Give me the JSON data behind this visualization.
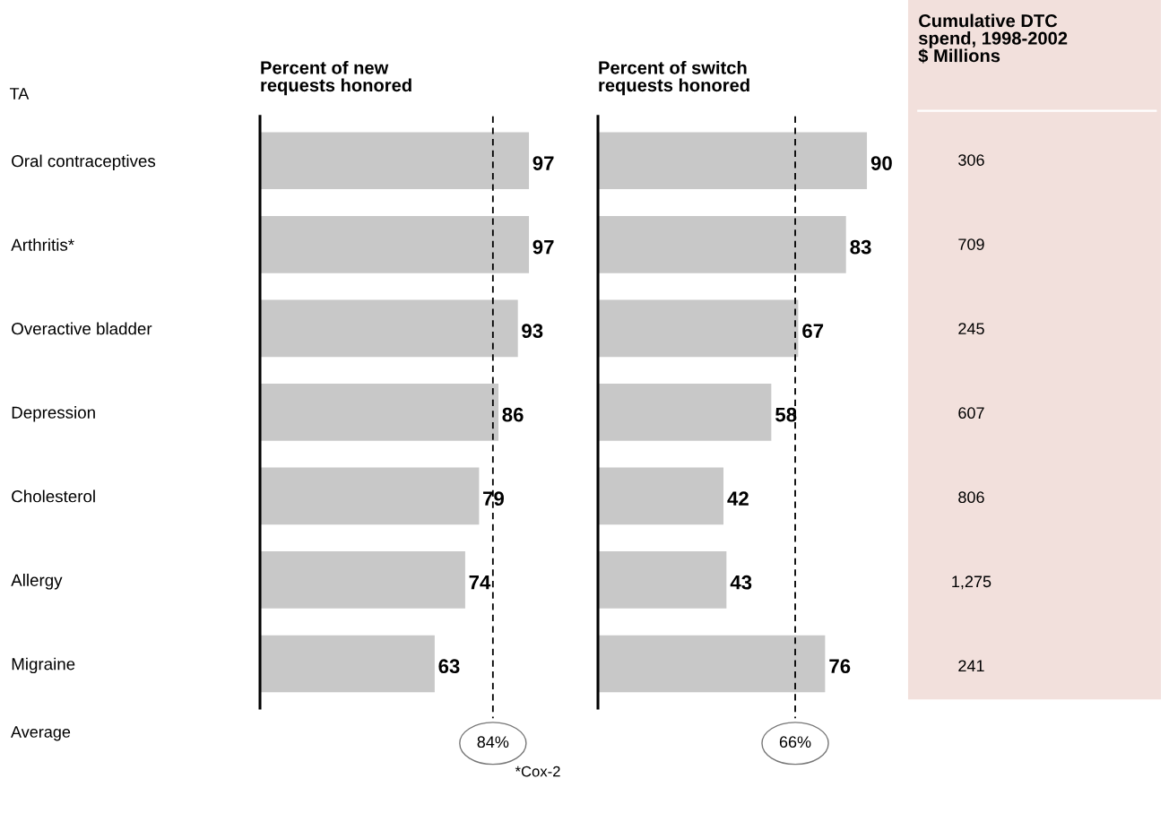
{
  "chart_data": [
    {
      "type": "bar",
      "orientation": "horizontal",
      "title": "Percent of new\nrequests honored",
      "ylabel": "TA",
      "categories": [
        "Oral contraceptives",
        "Arthritis*",
        "Overactive bladder",
        "Depression",
        "Cholesterol",
        "Allergy",
        "Migraine"
      ],
      "values": [
        97,
        97,
        93,
        86,
        79,
        74,
        63
      ],
      "color": "#c8c8c8",
      "tick_labels": "y",
      "data_labels": true,
      "grid": false,
      "ref_lines": [
        {
          "axis": "x",
          "value": 84,
          "label": "84%",
          "line_style": "dashed",
          "color": "#000000"
        }
      ],
      "annotations": [
        "Average"
      ]
    },
    {
      "type": "bar",
      "orientation": "horizontal",
      "title": "Percent of switch\nrequests honored",
      "categories": [
        null,
        null,
        null,
        null,
        null,
        null,
        null
      ],
      "values": [
        90,
        83,
        67,
        58,
        42,
        43,
        76
      ],
      "color": "#c8c8c8",
      "tick_labels": false,
      "data_labels": true,
      "grid": false,
      "ref_lines": [
        {
          "axis": "x",
          "value": 66,
          "label": "66%",
          "line_style": "dashed",
          "color": "#000000"
        }
      ],
      "annotations": [
        "*Cox-2"
      ]
    },
    {
      "type": "other",
      "title": "Cumulative DTC\nspend, 1998-2002\n$ Millions",
      "categories": [
        null,
        null,
        null,
        null,
        null,
        null,
        null
      ],
      "values": [
        306,
        709,
        245,
        607,
        806,
        1275,
        241
      ],
      "value_labels": [
        "306",
        "709",
        "245",
        "607",
        "806",
        "1,275",
        "241"
      ],
      "color": "#f2e0dc"
    }
  ]
}
